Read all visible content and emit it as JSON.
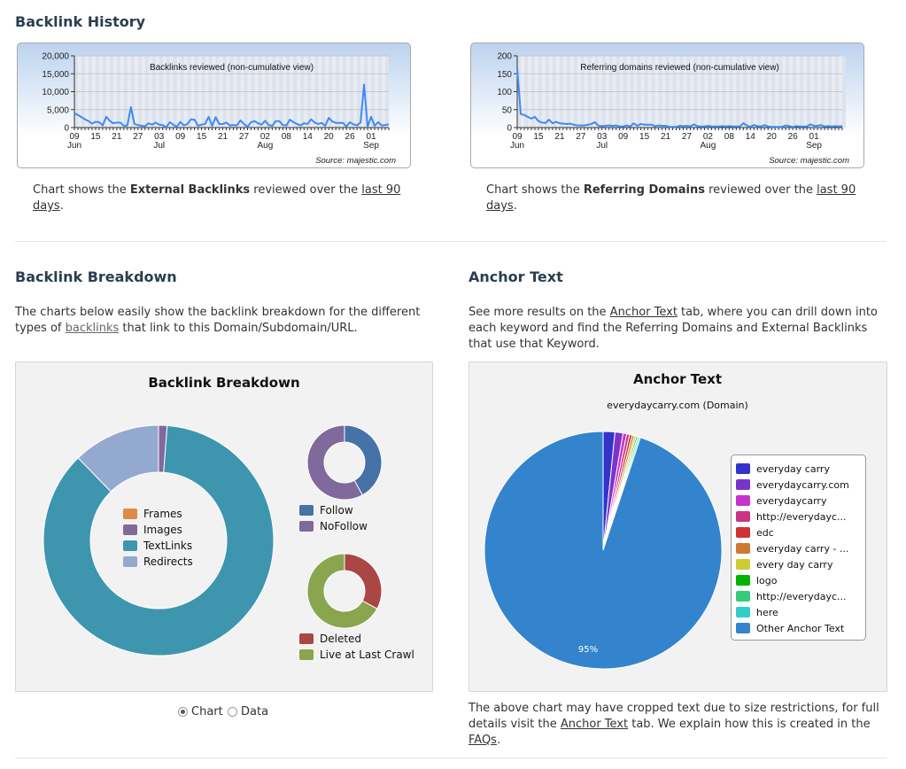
{
  "backlink_history": {
    "title": "Backlink History",
    "left_caption": {
      "pre": "Chart shows the ",
      "bold": "External Backlinks",
      "mid": " reviewed over the ",
      "link": "last 90 days",
      "post": "."
    },
    "right_caption": {
      "pre": "Chart shows the ",
      "bold": "Referring Domains",
      "mid": " reviewed over the ",
      "link": "last 90 days",
      "post": "."
    }
  },
  "backlink_breakdown": {
    "title": "Backlink Breakdown",
    "desc_pre": "The charts below easily show the backlink breakdown for the different types of ",
    "desc_link": "backlinks",
    "desc_post": " that link to this Domain/Subdomain/URL.",
    "view_options": [
      {
        "label": "Chart",
        "selected": true
      },
      {
        "label": "Data",
        "selected": false
      }
    ]
  },
  "anchor_text": {
    "title": "Anchor Text",
    "desc_pre": "See more results on the ",
    "desc_link": "Anchor Text",
    "desc_post": " tab, where you can drill down into each keyword and find the Referring Domains and External Backlinks that use that Keyword.",
    "note_pre": "The above chart may have cropped text due to size restrictions, for full details visit the ",
    "note_link1": "Anchor Text",
    "note_mid": " tab. We explain how this is created in the ",
    "note_link2": "FAQs",
    "note_post": "."
  },
  "chart_data": [
    {
      "type": "line",
      "title": "Backlinks reviewed (non-cumulative view)",
      "source": "Source: majestic.com",
      "ylim": [
        0,
        20000
      ],
      "yticks": [
        "0",
        "5,000",
        "10,000",
        "15,000",
        "20,000"
      ],
      "ytick_values": [
        0,
        5000,
        10000,
        15000,
        20000
      ],
      "xticks": [
        [
          "09",
          "Jun"
        ],
        [
          "15",
          ""
        ],
        [
          "21",
          ""
        ],
        [
          "27",
          ""
        ],
        [
          "03",
          "Jul"
        ],
        [
          "09",
          ""
        ],
        [
          "15",
          ""
        ],
        [
          "21",
          ""
        ],
        [
          "27",
          ""
        ],
        [
          "02",
          "Aug"
        ],
        [
          "08",
          ""
        ],
        [
          "14",
          ""
        ],
        [
          "20",
          ""
        ],
        [
          "26",
          ""
        ],
        [
          "01",
          "Sep"
        ]
      ],
      "x_start": "09 Jun",
      "grid": true,
      "color": "#3d8af7",
      "values": [
        4000,
        3500,
        2900,
        2300,
        1800,
        1100,
        1600,
        1500,
        600,
        3000,
        1900,
        1200,
        1400,
        1400,
        500,
        600,
        5700,
        1000,
        700,
        500,
        400,
        1200,
        800,
        1400,
        800,
        700,
        100,
        1500,
        800,
        200,
        1600,
        600,
        1000,
        2300,
        2200,
        500,
        800,
        1000,
        3000,
        500,
        2900,
        1000,
        1000,
        1400,
        600,
        700,
        600,
        2000,
        1000,
        200,
        1500,
        1800,
        1200,
        800,
        1900,
        700,
        500,
        1800,
        1800,
        700,
        600,
        2200,
        1500,
        1000,
        600,
        1200,
        1000,
        2300,
        1400,
        1000,
        1300,
        500,
        2700,
        1700,
        1300,
        1300,
        1300,
        300,
        1500,
        900,
        600,
        1400,
        12000,
        200,
        3000,
        500,
        1500,
        600,
        700,
        900
      ]
    },
    {
      "type": "line",
      "title": "Referring domains reviewed (non-cumulative view)",
      "source": "Source: majestic.com",
      "ylim": [
        0,
        200
      ],
      "yticks": [
        "0",
        "50",
        "100",
        "150",
        "200"
      ],
      "ytick_values": [
        0,
        50,
        100,
        150,
        200
      ],
      "xticks": [
        [
          "09",
          "Jun"
        ],
        [
          "15",
          ""
        ],
        [
          "21",
          ""
        ],
        [
          "27",
          ""
        ],
        [
          "03",
          "Jul"
        ],
        [
          "09",
          ""
        ],
        [
          "15",
          ""
        ],
        [
          "21",
          ""
        ],
        [
          "27",
          ""
        ],
        [
          "02",
          "Aug"
        ],
        [
          "08",
          ""
        ],
        [
          "14",
          ""
        ],
        [
          "20",
          ""
        ],
        [
          "26",
          ""
        ],
        [
          "01",
          "Sep"
        ]
      ],
      "x_start": "09 Jun",
      "grid": true,
      "color": "#3d8af7",
      "values": [
        165,
        38,
        35,
        30,
        25,
        30,
        18,
        14,
        13,
        22,
        12,
        16,
        12,
        11,
        10,
        11,
        8,
        6,
        6,
        6,
        8,
        10,
        15,
        5,
        4,
        5,
        6,
        5,
        6,
        3,
        3,
        6,
        3,
        12,
        5,
        10,
        8,
        8,
        8,
        4,
        6,
        5,
        5,
        2,
        2,
        2,
        5,
        4,
        5,
        3,
        9,
        4,
        3,
        3,
        5,
        3,
        3,
        3,
        4,
        3,
        4,
        3,
        3,
        3,
        12,
        6,
        2,
        7,
        4,
        3,
        7,
        3,
        2,
        2,
        2,
        2,
        6,
        4,
        2,
        4,
        3,
        3,
        3,
        9,
        5,
        5,
        7,
        3,
        4,
        3,
        4,
        3,
        4
      ]
    },
    {
      "type": "pie",
      "title": "Backlink Breakdown",
      "donut": true,
      "legend": "center",
      "slices": [
        {
          "label": "Frames",
          "value": 0,
          "color": "#df8a45"
        },
        {
          "label": "Images",
          "value": 1.2,
          "color": "#80699b"
        },
        {
          "label": "TextLinks",
          "value": 86.5,
          "color": "#3d96ae"
        },
        {
          "label": "Redirects",
          "value": 12.3,
          "color": "#93a9cf"
        }
      ]
    },
    {
      "type": "pie",
      "donut": true,
      "legend": "bottom",
      "slices": [
        {
          "label": "Follow",
          "value": 42,
          "color": "#4572a7"
        },
        {
          "label": "NoFollow",
          "value": 58,
          "color": "#80699b"
        }
      ]
    },
    {
      "type": "pie",
      "donut": true,
      "legend": "bottom",
      "slices": [
        {
          "label": "Deleted",
          "value": 33,
          "color": "#aa4643"
        },
        {
          "label": "Live at Last Crawl",
          "value": 67,
          "color": "#89a54e"
        }
      ]
    },
    {
      "type": "pie",
      "title": "Anchor Text",
      "subtitle": "everydaycarry.com (Domain)",
      "legend": "right",
      "data_label": "95%",
      "slices": [
        {
          "label": "everyday carry",
          "value": 1.6,
          "color": "#3333cc"
        },
        {
          "label": "everydaycarry.com",
          "value": 1.1,
          "color": "#7b33cc"
        },
        {
          "label": "everydaycarry",
          "value": 0.5,
          "color": "#c633cc"
        },
        {
          "label": "http://everydayc...",
          "value": 0.4,
          "color": "#cc3380"
        },
        {
          "label": "edc",
          "value": 0.35,
          "color": "#cc3333"
        },
        {
          "label": "everyday carry - ...",
          "value": 0.3,
          "color": "#cc7a33"
        },
        {
          "label": "every day carry",
          "value": 0.25,
          "color": "#cccc33"
        },
        {
          "label": "logo",
          "value": 0.2,
          "color": "#00b300"
        },
        {
          "label": "http://everydayc...",
          "value": 0.2,
          "color": "#33cc7a"
        },
        {
          "label": "here",
          "value": 0.2,
          "color": "#33cccc"
        },
        {
          "label": "Other Anchor Text",
          "value": 94.9,
          "color": "#3384cc"
        }
      ]
    }
  ]
}
